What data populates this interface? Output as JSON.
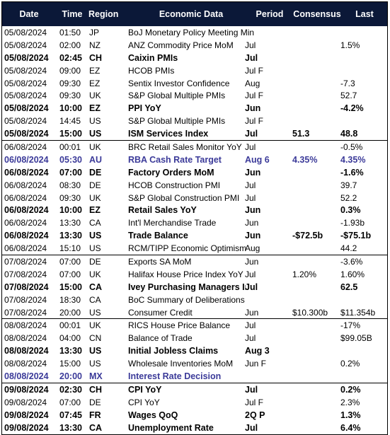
{
  "headers": {
    "date": "Date",
    "time": "Time",
    "region": "Region",
    "data": "Economic Data",
    "period": "Period",
    "consensus": "Consensus",
    "last": "Last"
  },
  "rows": [
    {
      "date": "05/08/2024",
      "time": "01:50",
      "region": "JP",
      "data": "BoJ Monetary Policy Meeting Minutes",
      "period": "",
      "consensus": "",
      "last": "",
      "style": "normal"
    },
    {
      "date": "05/08/2024",
      "time": "02:00",
      "region": "NZ",
      "data": "ANZ Commodity Price MoM",
      "period": "Jul",
      "consensus": "",
      "last": "1.5%",
      "style": "normal"
    },
    {
      "date": "05/08/2024",
      "time": "02:45",
      "region": "CH",
      "data": "Caixin PMIs",
      "period": "Jul",
      "consensus": "",
      "last": "",
      "style": "bold"
    },
    {
      "date": "05/08/2024",
      "time": "09:00",
      "region": "EZ",
      "data": "HCOB PMIs",
      "period": "Jul F",
      "consensus": "",
      "last": "",
      "style": "normal"
    },
    {
      "date": "05/08/2024",
      "time": "09:30",
      "region": "EZ",
      "data": "Sentix Investor Confidence",
      "period": "Aug",
      "consensus": "",
      "last": "-7.3",
      "style": "normal"
    },
    {
      "date": "05/08/2024",
      "time": "09:30",
      "region": "UK",
      "data": "S&P Global Multiple PMIs",
      "period": "Jul F",
      "consensus": "",
      "last": "52.7",
      "style": "normal"
    },
    {
      "date": "05/08/2024",
      "time": "10:00",
      "region": "EZ",
      "data": "PPI YoY",
      "period": "Jun",
      "consensus": "",
      "last": "-4.2%",
      "style": "bold"
    },
    {
      "date": "05/08/2024",
      "time": "14:45",
      "region": "US",
      "data": "S&P Global Multiple PMIs",
      "period": "Jul F",
      "consensus": "",
      "last": "",
      "style": "normal"
    },
    {
      "date": "05/08/2024",
      "time": "15:00",
      "region": "US",
      "data": "ISM Services Index",
      "period": "Jul",
      "consensus": "51.3",
      "last": "48.8",
      "style": "bold"
    },
    {
      "date": "06/08/2024",
      "time": "00:01",
      "region": "UK",
      "data": "BRC Retail Sales Monitor YoY",
      "period": "Jul",
      "consensus": "",
      "last": "-0.5%",
      "style": "normal",
      "sep": true
    },
    {
      "date": "06/08/2024",
      "time": "05:30",
      "region": "AU",
      "data": "RBA Cash Rate Target",
      "period": "Aug 6",
      "consensus": "4.35%",
      "last": "4.35%",
      "style": "bold-blue"
    },
    {
      "date": "06/08/2024",
      "time": "07:00",
      "region": "DE",
      "data": "Factory Orders MoM",
      "period": "Jun",
      "consensus": "",
      "last": "-1.6%",
      "style": "bold"
    },
    {
      "date": "06/08/2024",
      "time": "08:30",
      "region": "DE",
      "data": "HCOB Construction PMI",
      "period": "Jul",
      "consensus": "",
      "last": "39.7",
      "style": "normal"
    },
    {
      "date": "06/08/2024",
      "time": "09:30",
      "region": "UK",
      "data": "S&P Global Construction PMI",
      "period": "Jul",
      "consensus": "",
      "last": "52.2",
      "style": "normal"
    },
    {
      "date": "06/08/2024",
      "time": "10:00",
      "region": "EZ",
      "data": "Retail Sales YoY",
      "period": "Jun",
      "consensus": "",
      "last": "0.3%",
      "style": "bold"
    },
    {
      "date": "06/08/2024",
      "time": "13:30",
      "region": "CA",
      "data": "Int'l Merchandise Trade",
      "period": "Jun",
      "consensus": "",
      "last": "-1.93b",
      "style": "normal"
    },
    {
      "date": "06/08/2024",
      "time": "13:30",
      "region": "US",
      "data": "Trade Balance",
      "period": "Jun",
      "consensus": "-$72.5b",
      "last": "-$75.1b",
      "style": "bold"
    },
    {
      "date": "06/08/2024",
      "time": "15:10",
      "region": "US",
      "data": "RCM/TIPP Economic Optimism",
      "period": "Aug",
      "consensus": "",
      "last": "44.2",
      "style": "normal",
      "clip": true
    },
    {
      "date": "07/08/2024",
      "time": "07:00",
      "region": "DE",
      "data": "Exports SA MoM",
      "period": "Jun",
      "consensus": "",
      "last": "-3.6%",
      "style": "normal",
      "sep": true
    },
    {
      "date": "07/08/2024",
      "time": "07:00",
      "region": "UK",
      "data": "Halifax House Price Index YoY",
      "period": "Jul",
      "consensus": "1.20%",
      "last": "1.60%",
      "style": "normal",
      "clip": true
    },
    {
      "date": "07/08/2024",
      "time": "15:00",
      "region": "CA",
      "data": "Ivey Purchasing Managers Index",
      "period": "Jul",
      "consensus": "",
      "last": "62.5",
      "style": "bold",
      "clip": true
    },
    {
      "date": "07/08/2024",
      "time": "18:30",
      "region": "CA",
      "data": "BoC Summary of Deliberations",
      "period": "",
      "consensus": "",
      "last": "",
      "style": "normal"
    },
    {
      "date": "07/08/2024",
      "time": "20:00",
      "region": "US",
      "data": "Consumer Credit",
      "period": "Jun",
      "consensus": "$10.300b",
      "last": "$11.354b",
      "style": "normal"
    },
    {
      "date": "08/08/2024",
      "time": "00:01",
      "region": "UK",
      "data": "RICS House Price Balance",
      "period": "Jul",
      "consensus": "",
      "last": "-17%",
      "style": "normal",
      "sep": true
    },
    {
      "date": "08/08/2024",
      "time": "04:00",
      "region": "CN",
      "data": "Balance of Trade",
      "period": "Jul",
      "consensus": "",
      "last": "$99.05B",
      "style": "normal"
    },
    {
      "date": "08/08/2024",
      "time": "13:30",
      "region": "US",
      "data": "Initial Jobless Claims",
      "period": "Aug 3",
      "consensus": "",
      "last": "",
      "style": "bold"
    },
    {
      "date": "08/08/2024",
      "time": "15:00",
      "region": "US",
      "data": "Wholesale Inventories MoM",
      "period": "Jun F",
      "consensus": "",
      "last": "0.2%",
      "style": "normal"
    },
    {
      "date": "08/08/2024",
      "time": "20:00",
      "region": "MX",
      "data": "Interest Rate Decision",
      "period": "",
      "consensus": "",
      "last": "",
      "style": "bold-blue"
    },
    {
      "date": "09/08/2024",
      "time": "02:30",
      "region": "CH",
      "data": "CPI YoY",
      "period": "Jul",
      "consensus": "",
      "last": "0.2%",
      "style": "bold",
      "sep": true
    },
    {
      "date": "09/08/2024",
      "time": "07:00",
      "region": "DE",
      "data": "CPI YoY",
      "period": "Jul F",
      "consensus": "",
      "last": "2.3%",
      "style": "normal"
    },
    {
      "date": "09/08/2024",
      "time": "07:45",
      "region": "FR",
      "data": "Wages QoQ",
      "period": "2Q P",
      "consensus": "",
      "last": "1.3%",
      "style": "bold"
    },
    {
      "date": "09/08/2024",
      "time": "13:30",
      "region": "CA",
      "data": "Unemployment Rate",
      "period": "Jul",
      "consensus": "",
      "last": "6.4%",
      "style": "bold"
    }
  ],
  "colors": {
    "header_bg": "#0b1838",
    "header_text": "#ffffff",
    "highlight_blue": "#3b3a99"
  }
}
